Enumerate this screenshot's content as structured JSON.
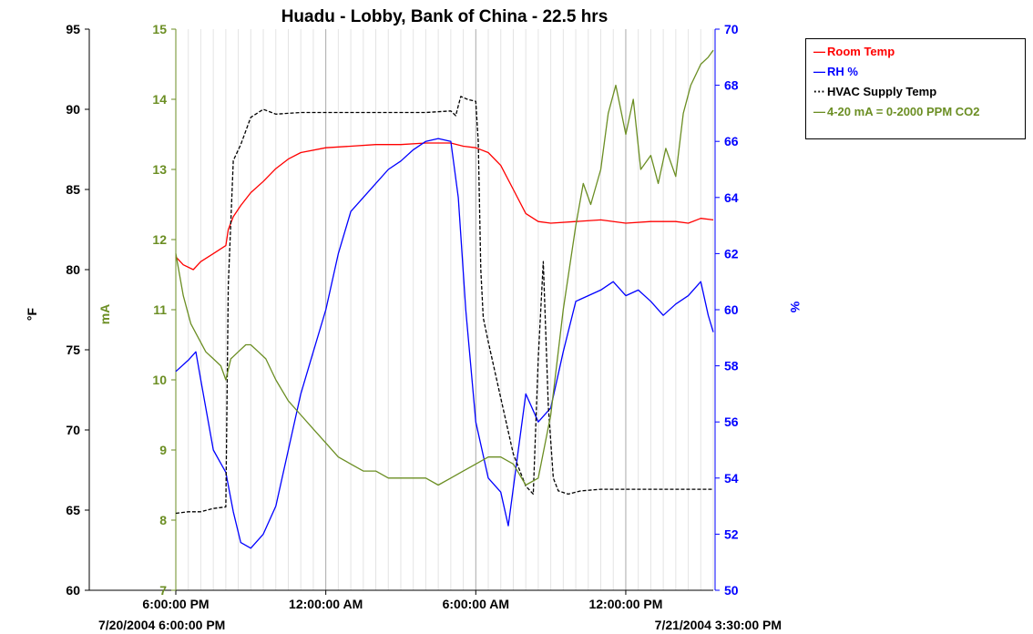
{
  "chart_data": {
    "type": "line",
    "title": "Huadu - Lobby, Bank of China - 22.5 hrs",
    "x_unit": "hours since 7/20/2004 6:00:00 PM",
    "xlim": [
      0,
      21.5
    ],
    "x_ticks": [
      {
        "x": 0,
        "label": "6:00:00 PM"
      },
      {
        "x": 6,
        "label": "12:00:00 AM"
      },
      {
        "x": 12,
        "label": "6:00:00 AM"
      },
      {
        "x": 18,
        "label": "12:00:00 PM"
      }
    ],
    "x_start_label": "7/20/2004 6:00:00 PM",
    "x_end_label": "7/21/2004 3:30:00 PM",
    "axes": {
      "left": {
        "label": "°F",
        "ylim": [
          60,
          95
        ],
        "ticks": [
          "60",
          "65",
          "70",
          "75",
          "80",
          "85",
          "90",
          "95"
        ],
        "color": "#000000"
      },
      "left2": {
        "label": "mA",
        "ylim": [
          7,
          15
        ],
        "ticks": [
          "7",
          "8",
          "9",
          "10",
          "11",
          "12",
          "13",
          "14",
          "15"
        ],
        "color": "#6b8e23"
      },
      "right": {
        "label": "%",
        "ylim": [
          50,
          70
        ],
        "ticks": [
          "50",
          "52",
          "54",
          "56",
          "58",
          "60",
          "62",
          "64",
          "66",
          "68",
          "70"
        ],
        "color": "#0000ff"
      }
    },
    "series": [
      {
        "name": "Room Temp",
        "axis": "left",
        "color": "#ff0000",
        "style": "solid",
        "x": [
          0,
          0.3,
          0.7,
          1.0,
          1.5,
          2.0,
          2.1,
          2.3,
          2.6,
          3,
          3.5,
          4,
          4.5,
          5,
          6,
          7,
          8,
          9,
          10,
          11,
          11.5,
          12,
          12.5,
          13,
          13.5,
          14,
          14.5,
          15,
          16,
          17,
          18,
          19,
          20,
          20.5,
          21,
          21.5
        ],
        "y": [
          80.8,
          80.3,
          80.0,
          80.5,
          81.0,
          81.5,
          82.5,
          83.3,
          84.0,
          84.8,
          85.5,
          86.3,
          86.9,
          87.3,
          87.6,
          87.7,
          87.8,
          87.8,
          87.9,
          87.9,
          87.7,
          87.6,
          87.3,
          86.5,
          85.0,
          83.5,
          83.0,
          82.9,
          83.0,
          83.1,
          82.9,
          83.0,
          83.0,
          82.9,
          83.2,
          83.1
        ]
      },
      {
        "name": "RH %",
        "axis": "right",
        "color": "#0000ff",
        "style": "solid",
        "x": [
          0,
          0.5,
          0.8,
          1.0,
          1.5,
          2.0,
          2.3,
          2.6,
          3.0,
          3.5,
          4.0,
          4.5,
          5.0,
          5.5,
          6.0,
          6.5,
          7.0,
          7.5,
          8.0,
          8.5,
          9.0,
          9.5,
          10.0,
          10.5,
          11.0,
          11.3,
          11.6,
          12.0,
          12.5,
          13.0,
          13.3,
          13.7,
          14.0,
          14.5,
          15.0,
          15.5,
          16.0,
          17,
          17.5,
          18,
          18.5,
          19,
          19.5,
          20,
          20.5,
          21,
          21.3,
          21.5
        ],
        "y": [
          57.8,
          58.2,
          58.5,
          57.5,
          55.0,
          54.2,
          52.8,
          51.7,
          51.5,
          52.0,
          53.0,
          55.0,
          57.0,
          58.5,
          60.0,
          62.0,
          63.5,
          64.0,
          64.5,
          65.0,
          65.3,
          65.7,
          66.0,
          66.1,
          66.0,
          64.0,
          60.0,
          56.0,
          54.0,
          53.5,
          52.3,
          55.0,
          57.0,
          56.0,
          56.5,
          58.5,
          60.3,
          60.7,
          61.0,
          60.5,
          60.7,
          60.3,
          59.8,
          60.2,
          60.5,
          61.0,
          59.8,
          59.2
        ]
      },
      {
        "name": "HVAC Supply Temp",
        "axis": "left",
        "color": "#000000",
        "style": "dashed",
        "x": [
          0,
          0.5,
          1.0,
          1.5,
          2.0,
          2.1,
          2.3,
          2.6,
          3.0,
          3.5,
          4,
          5,
          6,
          7,
          8,
          9,
          10,
          11.0,
          11.2,
          11.4,
          11.7,
          12.0,
          12.1,
          12.2,
          12.3,
          12.5,
          13,
          13.5,
          14,
          14.3,
          14.5,
          14.7,
          14.9,
          15.1,
          15.3,
          15.7,
          16.2,
          17,
          18,
          19,
          20,
          21,
          21.5
        ],
        "y": [
          64.8,
          64.9,
          64.9,
          65.1,
          65.2,
          79.0,
          86.8,
          87.8,
          89.5,
          90.0,
          89.7,
          89.8,
          89.8,
          89.8,
          89.8,
          89.8,
          89.8,
          89.9,
          89.6,
          90.8,
          90.6,
          90.5,
          88.0,
          80.0,
          77.0,
          75.5,
          72.0,
          68.5,
          66.5,
          66.0,
          74.5,
          80.5,
          71.5,
          67.0,
          66.2,
          66.0,
          66.2,
          66.3,
          66.3,
          66.3,
          66.3,
          66.3,
          66.3
        ]
      },
      {
        "name": "4-20 mA = 0-2000 PPM CO2",
        "axis": "left2",
        "color": "#6b8e23",
        "style": "solid",
        "x": [
          0,
          0.3,
          0.6,
          0.9,
          1.2,
          1.5,
          1.8,
          2.0,
          2.2,
          2.5,
          2.8,
          3.0,
          3.3,
          3.6,
          4.0,
          4.5,
          5,
          5.5,
          6,
          6.5,
          7,
          7.5,
          8,
          8.5,
          9,
          9.5,
          10,
          10.5,
          11,
          11.5,
          12,
          12.5,
          13,
          13.5,
          14,
          14.5,
          15.0,
          15.5,
          16.0,
          16.3,
          16.6,
          17.0,
          17.3,
          17.6,
          18,
          18.3,
          18.6,
          19.0,
          19.3,
          19.6,
          20.0,
          20.3,
          20.6,
          21.0,
          21.3,
          21.5
        ],
        "y": [
          11.8,
          11.2,
          10.8,
          10.6,
          10.4,
          10.3,
          10.2,
          10.0,
          10.3,
          10.4,
          10.5,
          10.5,
          10.4,
          10.3,
          10.0,
          9.7,
          9.5,
          9.3,
          9.1,
          8.9,
          8.8,
          8.7,
          8.7,
          8.6,
          8.6,
          8.6,
          8.6,
          8.5,
          8.6,
          8.7,
          8.8,
          8.9,
          8.9,
          8.8,
          8.5,
          8.6,
          9.5,
          11.0,
          12.2,
          12.8,
          12.5,
          13.0,
          13.8,
          14.2,
          13.5,
          14.0,
          13.0,
          13.2,
          12.8,
          13.3,
          12.9,
          13.8,
          14.2,
          14.5,
          14.6,
          14.7
        ]
      }
    ],
    "legend_position": "top-right",
    "grid": {
      "vertical": true,
      "horizontal": false
    }
  }
}
